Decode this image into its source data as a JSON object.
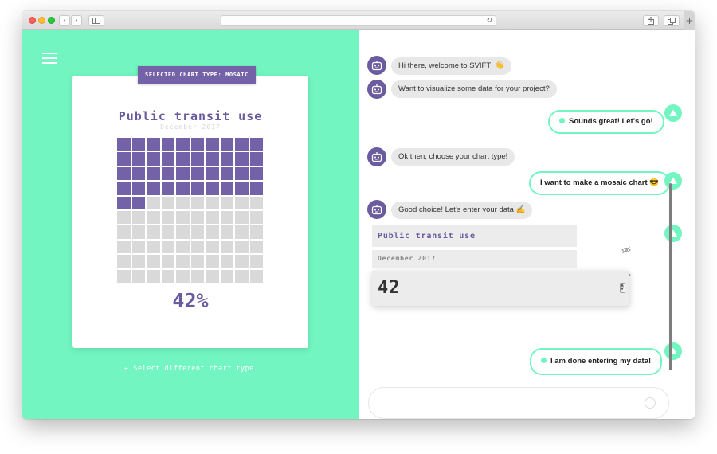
{
  "browser": {
    "back_glyph": "‹",
    "forward_glyph": "›",
    "new_tab_glyph": "+"
  },
  "left_panel": {
    "background": "#72f5c0",
    "menu_icon": "hamburger-icon",
    "badge": "SELECTED CHART TYPE: MOSAIC",
    "chart_title": "Public transit use",
    "chart_subtitle": "December 2017",
    "chart_value": "42%",
    "select_link": "← Select different chart type"
  },
  "chart_data": {
    "type": "mosaic",
    "title": "Public transit use",
    "subtitle": "December 2017",
    "value": 42,
    "total": 100,
    "grid": [
      10,
      10
    ],
    "color_filled": "#7462a8",
    "color_empty": "#d9d9d9"
  },
  "chat": {
    "bot_messages": [
      {
        "text": "Hi there, welcome to SVIFT! 👋"
      },
      {
        "text": "Want to visualize some data for your project?"
      },
      {
        "text": "Ok then, choose your chart type!"
      },
      {
        "text": "Good choice! Let's enter your data ✍️"
      }
    ],
    "user_messages": [
      {
        "text": "Sounds great! Let's go!"
      },
      {
        "text": "I want to make a mosaic chart 😎"
      },
      {
        "text": "I am done entering my data!"
      }
    ],
    "data_form": {
      "title_value": "Public transit use",
      "subtitle_value": "December 2017",
      "number_value": "42"
    }
  },
  "colors": {
    "accent": "#72f5c0",
    "purple": "#6b5b9f"
  }
}
